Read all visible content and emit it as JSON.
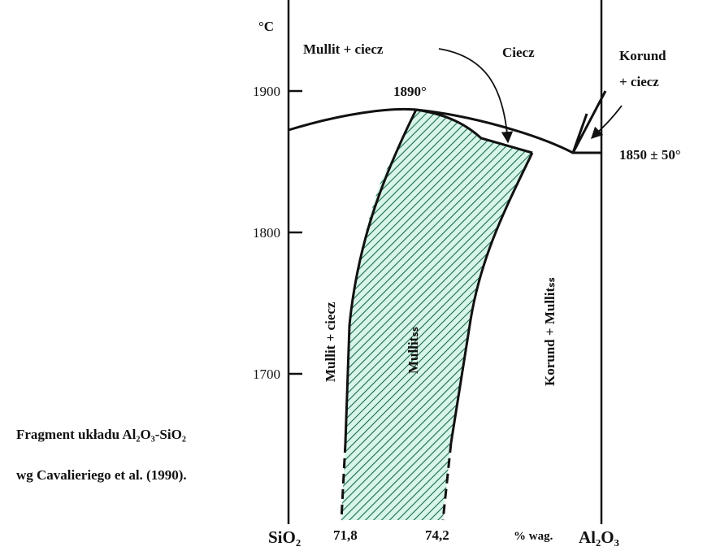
{
  "axis": {
    "unit": "°C",
    "ticks": [
      "1900",
      "1800",
      "1700"
    ]
  },
  "regions": {
    "liquid": "Ciecz",
    "mullite_liquid_top": "Mullit + ciecz",
    "corundum_liquid_1": "Korund",
    "corundum_liquid_2": "+ ciecz",
    "mullite_liquid_left": "Mullit + ciecz",
    "mullite_ss": "Mullitₛₛ",
    "corundum_mullite": "Korund + Mullitₛₛ"
  },
  "points": {
    "maximum": "1890°",
    "eutectic": "1850 ± 50°"
  },
  "x_axis": {
    "left": "SiO₂",
    "tick1": "71,8",
    "tick2": "74,2",
    "unit": "% wag.",
    "right": "Al₂O₃"
  },
  "caption": {
    "line1": "Fragment układu Al₂O₃-SiO₂",
    "line2": "wg Cavalieriego et al. (1990)."
  }
}
